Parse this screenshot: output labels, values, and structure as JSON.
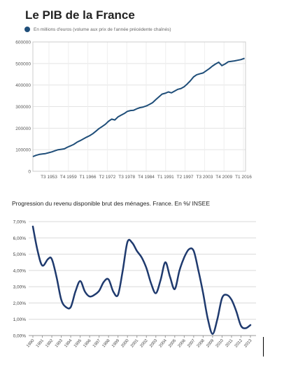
{
  "chart_data": [
    {
      "type": "line",
      "title": "Le PIB de la France",
      "legend": "En millions d'euros (volume aux prix de l'année précédente chaînés)",
      "legend_position": "top-left",
      "xlabel": "",
      "ylabel": "",
      "ylim": [
        0,
        600000
      ],
      "y_ticks": [
        "0",
        "100000",
        "200000",
        "300000",
        "400000",
        "500000",
        "600000"
      ],
      "x_tick_labels": [
        "T3 1953",
        "T4 1959",
        "T1 1966",
        "T2 1972",
        "T3 1978",
        "T4 1984",
        "T1 1991",
        "T2 1997",
        "T3 2003",
        "T4 2009",
        "T1 2016"
      ],
      "x_range": [
        1949,
        2016.5
      ],
      "grid": true,
      "color": "#1f4e79",
      "series": [
        {
          "x": [
            1949,
            1950,
            1951,
            1952,
            1953,
            1954,
            1955,
            1956,
            1957,
            1958,
            1959,
            1960,
            1961,
            1962,
            1963,
            1964,
            1965,
            1966,
            1967,
            1968,
            1969,
            1970,
            1971,
            1972,
            1973,
            1974,
            1975,
            1976,
            1977,
            1978,
            1979,
            1980,
            1981,
            1982,
            1983,
            1984,
            1985,
            1986,
            1987,
            1988,
            1989,
            1990,
            1991,
            1992,
            1993,
            1994,
            1995,
            1996,
            1997,
            1998,
            1999,
            2000,
            2001,
            2002,
            2003,
            2004,
            2005,
            2006,
            2007,
            2008,
            2009,
            2010,
            2011,
            2012,
            2013,
            2014,
            2015,
            2016.2
          ],
          "values": [
            68000,
            74000,
            78000,
            80000,
            82000,
            86000,
            90000,
            95000,
            100000,
            102000,
            104000,
            112000,
            118000,
            125000,
            135000,
            142000,
            150000,
            158000,
            165000,
            174000,
            186000,
            198000,
            208000,
            218000,
            232000,
            242000,
            238000,
            252000,
            260000,
            268000,
            278000,
            282000,
            283000,
            290000,
            295000,
            298000,
            303000,
            310000,
            318000,
            332000,
            345000,
            358000,
            362000,
            368000,
            364000,
            372000,
            380000,
            384000,
            392000,
            405000,
            420000,
            438000,
            448000,
            452000,
            456000,
            466000,
            476000,
            488000,
            498000,
            506000,
            490000,
            498000,
            508000,
            510000,
            512000,
            515000,
            518000,
            524000
          ]
        }
      ]
    },
    {
      "type": "line",
      "title": "Progression du revenu disponible brut des ménages. France. En %/ INSEE",
      "xlabel": "",
      "ylabel": "",
      "ylim": [
        0,
        7
      ],
      "y_ticks": [
        "0,00%",
        "1,00%",
        "2,00%",
        "3,00%",
        "4,00%",
        "5,00%",
        "6,00%",
        "7,00%"
      ],
      "categories": [
        "1990",
        "1991",
        "1992",
        "1993",
        "1994",
        "1995",
        "1996",
        "1997",
        "1998",
        "1999",
        "2000",
        "2001",
        "2002",
        "2003",
        "2004",
        "2005",
        "2006",
        "2007",
        "2008",
        "2009",
        "2010",
        "2011",
        "2012",
        "2013"
      ],
      "grid": true,
      "color": "#1f3a6e",
      "series": [
        {
          "x": [
            1990,
            1990.5,
            1991,
            1991.6,
            1992,
            1992.5,
            1993,
            1993.5,
            1994,
            1994.5,
            1995,
            1995.5,
            1996,
            1996.5,
            1997,
            1997.5,
            1998,
            1998.5,
            1999,
            1999.5,
            2000,
            2000.5,
            2001,
            2001.5,
            2002,
            2002.5,
            2003,
            2003.5,
            2004,
            2004.5,
            2005,
            2005.5,
            2006,
            2006.5,
            2007,
            2007.5,
            2008,
            2008.5,
            2009,
            2009.5,
            2010,
            2010.5,
            2011,
            2011.5,
            2012,
            2012.5,
            2013
          ],
          "values": [
            6.7,
            5.2,
            4.3,
            4.7,
            4.7,
            3.6,
            2.2,
            1.75,
            1.75,
            2.7,
            3.35,
            2.7,
            2.4,
            2.5,
            2.75,
            3.3,
            3.45,
            2.7,
            2.5,
            4.0,
            5.75,
            5.7,
            5.2,
            4.8,
            4.15,
            3.2,
            2.6,
            3.4,
            4.5,
            3.6,
            2.85,
            4.0,
            4.8,
            5.3,
            5.2,
            4.0,
            2.6,
            1.0,
            0.1,
            1.0,
            2.3,
            2.5,
            2.2,
            1.5,
            0.6,
            0.45,
            0.65
          ]
        }
      ]
    }
  ]
}
